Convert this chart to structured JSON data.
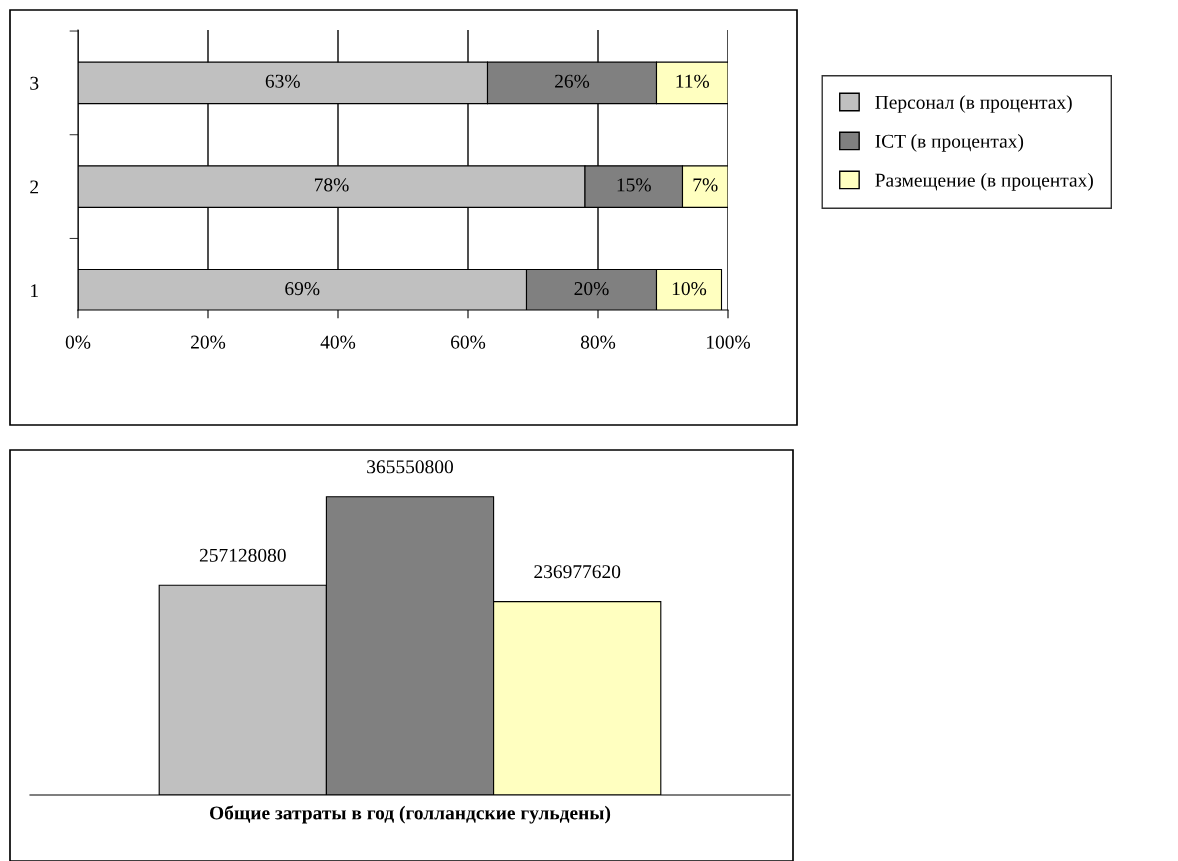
{
  "chart_data": [
    {
      "type": "bar",
      "orientation": "horizontal",
      "stacked": true,
      "categories": [
        "3",
        "2",
        "1"
      ],
      "series": [
        {
          "name": "Персонал (в процентах)",
          "color": "#c0c0c0",
          "values": [
            63,
            78,
            69
          ],
          "value_labels": [
            "63%",
            "78%",
            "69%"
          ]
        },
        {
          "name": "ICT (в процентах)",
          "color": "#808080",
          "values": [
            26,
            15,
            20
          ],
          "value_labels": [
            "26%",
            "15%",
            "20%"
          ]
        },
        {
          "name": "Размещение (в процентах)",
          "color": "#ffffc0",
          "values": [
            11,
            7,
            10
          ],
          "value_labels": [
            "11%",
            "7%",
            "10%"
          ]
        }
      ],
      "xlim": [
        0,
        100
      ],
      "xticks": [
        {
          "value": 0,
          "label": "0%"
        },
        {
          "value": 20,
          "label": "20%"
        },
        {
          "value": 40,
          "label": "40%"
        },
        {
          "value": 60,
          "label": "60%"
        },
        {
          "value": 80,
          "label": "80%"
        },
        {
          "value": 100,
          "label": "100%"
        }
      ],
      "grid": "x",
      "legend": "right"
    },
    {
      "type": "bar",
      "categories": [
        null
      ],
      "xlabel": "Общие затраты в год (голландские гульдены)",
      "series": [
        {
          "color": "#c0c0c0",
          "values": [
            257128080
          ]
        },
        {
          "color": "#808080",
          "values": [
            365550800
          ]
        },
        {
          "color": "#ffffc0",
          "values": [
            236977620
          ]
        }
      ],
      "data_labels": true
    }
  ]
}
